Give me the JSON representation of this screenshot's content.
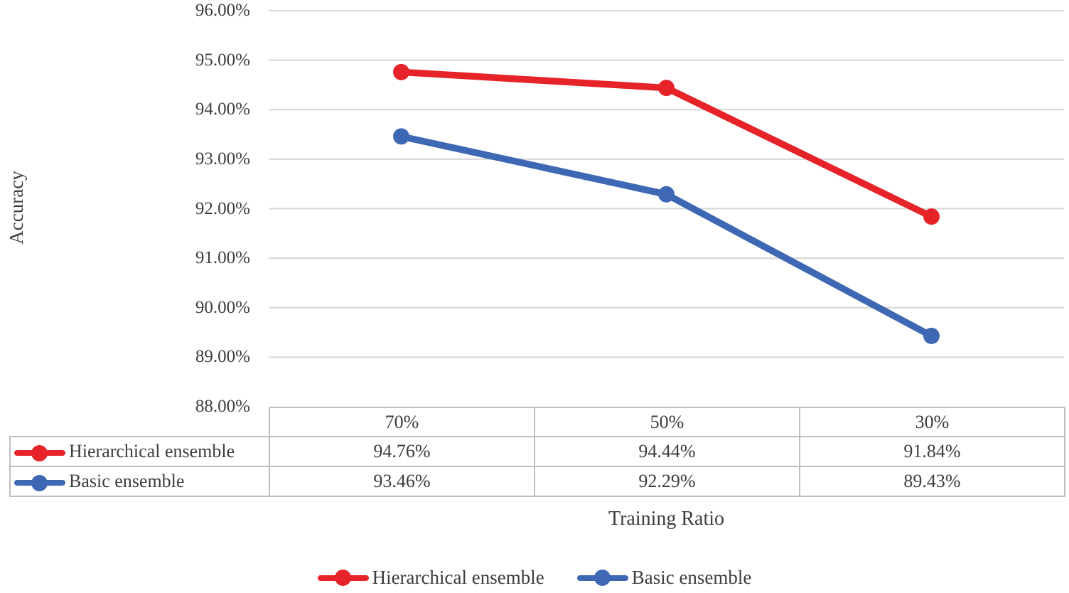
{
  "chart_data": {
    "type": "line",
    "title": "",
    "xlabel": "Training Ratio",
    "ylabel": "Accuracy",
    "categories": [
      "70%",
      "50%",
      "30%"
    ],
    "series": [
      {
        "name": "Hierarchical ensemble",
        "color": "#e62329",
        "values": [
          94.76,
          94.44,
          91.84
        ],
        "value_labels": [
          "94.76%",
          "94.44%",
          "91.84%"
        ]
      },
      {
        "name": "Basic ensemble",
        "color": "#3e68b4",
        "values": [
          93.46,
          92.29,
          89.43
        ],
        "value_labels": [
          "93.46%",
          "92.29%",
          "89.43%"
        ]
      }
    ],
    "ylim": [
      88,
      96
    ],
    "ytick_labels": [
      "96.00%",
      "95.00%",
      "94.00%",
      "93.00%",
      "92.00%",
      "91.00%",
      "90.00%",
      "89.00%",
      "88.00%"
    ],
    "grid": true,
    "legend_position": "bottom",
    "has_data_table": true,
    "colors": {
      "gridline": "#d6d6d6",
      "table_border": "#bfbfbf",
      "text": "#3d3d3d"
    }
  }
}
